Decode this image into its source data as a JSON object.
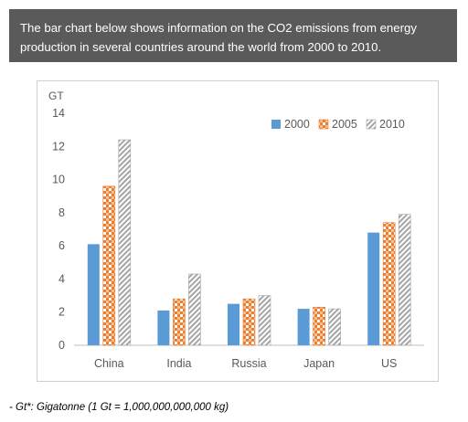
{
  "banner": {
    "line1": "The bar chart below shows information on the CO2 emissions from energy",
    "line2": "production in several countries around the world from 2000 to 2010."
  },
  "footnote": "- Gt*: Gigatonne (1 Gt = 1,000,000,000,000 kg)",
  "chart_data": {
    "type": "bar",
    "ylabel": "GT",
    "categories": [
      "China",
      "India",
      "Russia",
      "Japan",
      "US"
    ],
    "ylim": [
      0,
      14
    ],
    "yticks": [
      0,
      2,
      4,
      6,
      8,
      10,
      12,
      14
    ],
    "grid": false,
    "legend_position": "top-right",
    "series": [
      {
        "name": "2000",
        "values": [
          6.1,
          2.1,
          2.5,
          2.2,
          6.8
        ],
        "color": "#5b9bd5",
        "pattern": "solid"
      },
      {
        "name": "2005",
        "values": [
          9.6,
          2.8,
          2.8,
          2.3,
          7.4
        ],
        "color": "#ed7d31",
        "pattern": "checker"
      },
      {
        "name": "2010",
        "values": [
          12.4,
          4.3,
          3.0,
          2.2,
          7.9
        ],
        "color": "#a5a5a5",
        "pattern": "diagonal"
      }
    ]
  }
}
